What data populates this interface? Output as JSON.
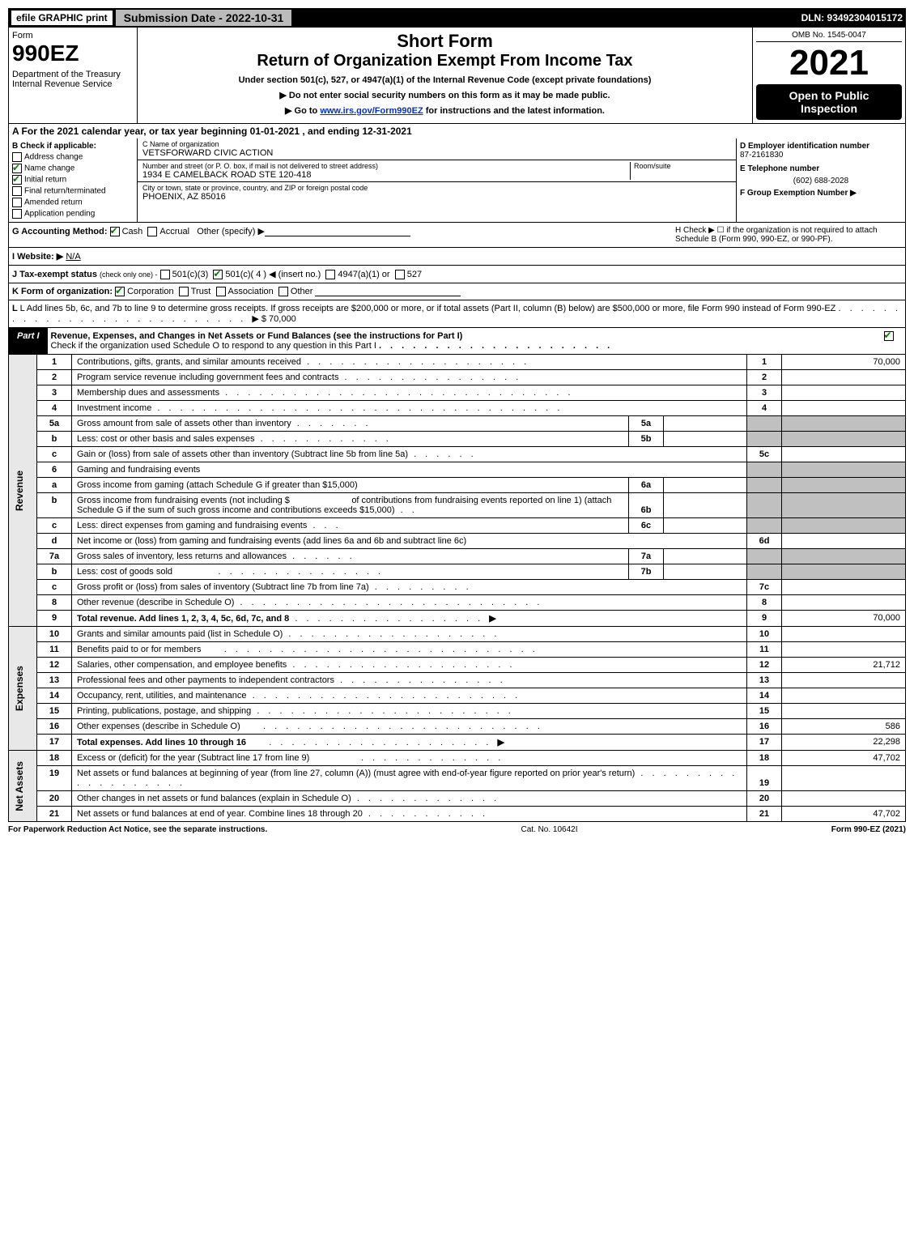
{
  "top": {
    "efile": "efile GRAPHIC print",
    "submission_label": "Submission Date - 2022-10-31",
    "dln": "DLN: 93492304015172"
  },
  "header": {
    "form_label": "Form",
    "form_number": "990EZ",
    "dept": "Department of the Treasury\nInternal Revenue Service",
    "short_form": "Short Form",
    "title": "Return of Organization Exempt From Income Tax",
    "subtitle": "Under section 501(c), 527, or 4947(a)(1) of the Internal Revenue Code (except private foundations)",
    "ssn_warning": "▶ Do not enter social security numbers on this form as it may be made public.",
    "goto": "▶ Go to ",
    "goto_link_text": "www.irs.gov/Form990EZ",
    "goto_suffix": " for instructions and the latest information.",
    "omb": "OMB No. 1545-0047",
    "year": "2021",
    "open_public": "Open to Public Inspection"
  },
  "section_a": "A  For the 2021 calendar year, or tax year beginning 01-01-2021 , and ending 12-31-2021",
  "section_b": {
    "header": "B  Check if applicable:",
    "address_change": "Address change",
    "name_change": "Name change",
    "initial_return": "Initial return",
    "final_return": "Final return/terminated",
    "amended_return": "Amended return",
    "application_pending": "Application pending",
    "checked": {
      "address_change": false,
      "name_change": true,
      "initial_return": true,
      "final_return": false,
      "amended_return": false,
      "application_pending": false
    }
  },
  "org": {
    "name_label": "C Name of organization",
    "name": "VETSFORWARD CIVIC ACTION",
    "addr_label": "Number and street (or P. O. box, if mail is not delivered to street address)",
    "room_label": "Room/suite",
    "address": "1934 E CAMELBACK ROAD STE 120-418",
    "city_label": "City or town, state or province, country, and ZIP or foreign postal code",
    "city": "PHOENIX, AZ  85016"
  },
  "right_info": {
    "ein_label": "D Employer identification number",
    "ein": "87-2161830",
    "phone_label": "E Telephone number",
    "phone": "(602) 688-2028",
    "group_label": "F Group Exemption Number  ▶"
  },
  "meta": {
    "g_label": "G Accounting Method:",
    "g_cash": "Cash",
    "g_accrual": "Accrual",
    "g_other": "Other (specify) ▶",
    "h_text": "H  Check ▶  ☐  if the organization is not required to attach Schedule B (Form 990, 990-EZ, or 990-PF).",
    "i_label": "I Website: ▶",
    "i_value": "N/A",
    "j_label": "J Tax-exempt status",
    "j_note": "(check only one) -",
    "j_501c3": "501(c)(3)",
    "j_501c": "501(c)( 4 ) ◀ (insert no.)",
    "j_4947": "4947(a)(1) or",
    "j_527": "527",
    "k_label": "K Form of organization:",
    "k_corp": "Corporation",
    "k_trust": "Trust",
    "k_assoc": "Association",
    "k_other": "Other",
    "l_text": "L Add lines 5b, 6c, and 7b to line 9 to determine gross receipts. If gross receipts are $200,000 or more, or if total assets (Part II, column (B) below) are $500,000 or more, file Form 990 instead of Form 990-EZ",
    "l_amount": "▶ $ 70,000"
  },
  "part1": {
    "label": "Part I",
    "title": "Revenue, Expenses, and Changes in Net Assets or Fund Balances (see the instructions for Part I)",
    "check_text": "Check if the organization used Schedule O to respond to any question in this Part I",
    "checked": true
  },
  "side_labels": {
    "revenue": "Revenue",
    "expenses": "Expenses",
    "net_assets": "Net Assets"
  },
  "lines": {
    "l1": {
      "no": "1",
      "desc": "Contributions, gifts, grants, and similar amounts received",
      "col": "1",
      "val": "70,000"
    },
    "l2": {
      "no": "2",
      "desc": "Program service revenue including government fees and contracts",
      "col": "2",
      "val": ""
    },
    "l3": {
      "no": "3",
      "desc": "Membership dues and assessments",
      "col": "3",
      "val": ""
    },
    "l4": {
      "no": "4",
      "desc": "Investment income",
      "col": "4",
      "val": ""
    },
    "l5a": {
      "no": "5a",
      "desc": "Gross amount from sale of assets other than inventory",
      "inner": "5a"
    },
    "l5b": {
      "no": "b",
      "desc": "Less: cost or other basis and sales expenses",
      "inner": "5b"
    },
    "l5c": {
      "no": "c",
      "desc": "Gain or (loss) from sale of assets other than inventory (Subtract line 5b from line 5a)",
      "col": "5c"
    },
    "l6": {
      "no": "6",
      "desc": "Gaming and fundraising events"
    },
    "l6a": {
      "no": "a",
      "desc": "Gross income from gaming (attach Schedule G if greater than $15,000)",
      "inner": "6a"
    },
    "l6b": {
      "no": "b",
      "desc1": "Gross income from fundraising events (not including $",
      "desc2": "of contributions from fundraising events reported on line 1) (attach Schedule G if the sum of such gross income and contributions exceeds $15,000)",
      "inner": "6b"
    },
    "l6c": {
      "no": "c",
      "desc": "Less: direct expenses from gaming and fundraising events",
      "inner": "6c"
    },
    "l6d": {
      "no": "d",
      "desc": "Net income or (loss) from gaming and fundraising events (add lines 6a and 6b and subtract line 6c)",
      "col": "6d"
    },
    "l7a": {
      "no": "7a",
      "desc": "Gross sales of inventory, less returns and allowances",
      "inner": "7a"
    },
    "l7b": {
      "no": "b",
      "desc": "Less: cost of goods sold",
      "inner": "7b"
    },
    "l7c": {
      "no": "c",
      "desc": "Gross profit or (loss) from sales of inventory (Subtract line 7b from line 7a)",
      "col": "7c"
    },
    "l8": {
      "no": "8",
      "desc": "Other revenue (describe in Schedule O)",
      "col": "8"
    },
    "l9": {
      "no": "9",
      "desc": "Total revenue. Add lines 1, 2, 3, 4, 5c, 6d, 7c, and 8",
      "col": "9",
      "val": "70,000"
    },
    "l10": {
      "no": "10",
      "desc": "Grants and similar amounts paid (list in Schedule O)",
      "col": "10"
    },
    "l11": {
      "no": "11",
      "desc": "Benefits paid to or for members",
      "col": "11"
    },
    "l12": {
      "no": "12",
      "desc": "Salaries, other compensation, and employee benefits",
      "col": "12",
      "val": "21,712"
    },
    "l13": {
      "no": "13",
      "desc": "Professional fees and other payments to independent contractors",
      "col": "13"
    },
    "l14": {
      "no": "14",
      "desc": "Occupancy, rent, utilities, and maintenance",
      "col": "14"
    },
    "l15": {
      "no": "15",
      "desc": "Printing, publications, postage, and shipping",
      "col": "15"
    },
    "l16": {
      "no": "16",
      "desc": "Other expenses (describe in Schedule O)",
      "col": "16",
      "val": "586"
    },
    "l17": {
      "no": "17",
      "desc": "Total expenses. Add lines 10 through 16",
      "col": "17",
      "val": "22,298"
    },
    "l18": {
      "no": "18",
      "desc": "Excess or (deficit) for the year (Subtract line 17 from line 9)",
      "col": "18",
      "val": "47,702"
    },
    "l19": {
      "no": "19",
      "desc": "Net assets or fund balances at beginning of year (from line 27, column (A)) (must agree with end-of-year figure reported on prior year's return)",
      "col": "19"
    },
    "l20": {
      "no": "20",
      "desc": "Other changes in net assets or fund balances (explain in Schedule O)",
      "col": "20"
    },
    "l21": {
      "no": "21",
      "desc": "Net assets or fund balances at end of year. Combine lines 18 through 20",
      "col": "21",
      "val": "47,702"
    }
  },
  "footer": {
    "left": "For Paperwork Reduction Act Notice, see the separate instructions.",
    "center": "Cat. No. 10642I",
    "right": "Form 990-EZ (2021)"
  }
}
